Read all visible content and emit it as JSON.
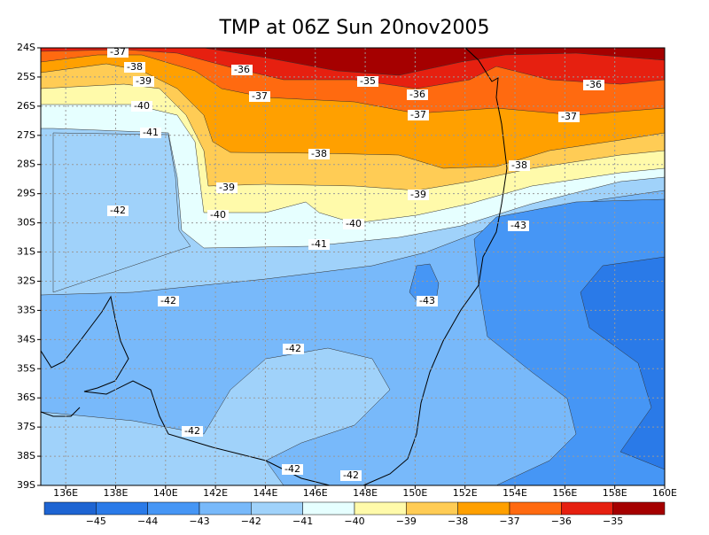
{
  "title": "TMP at 06Z Sun 20nov2005",
  "map": {
    "lonlim": [
      135,
      160
    ],
    "latlim": [
      -24,
      -39
    ],
    "grid": true,
    "lon_ticks": [
      {
        "value": 136,
        "label": "136E"
      },
      {
        "value": 138,
        "label": "138E"
      },
      {
        "value": 140,
        "label": "140E"
      },
      {
        "value": 142,
        "label": "142E"
      },
      {
        "value": 144,
        "label": "144E"
      },
      {
        "value": 146,
        "label": "146E"
      },
      {
        "value": 148,
        "label": "148E"
      },
      {
        "value": 150,
        "label": "150E"
      },
      {
        "value": 152,
        "label": "152E"
      },
      {
        "value": 154,
        "label": "154E"
      },
      {
        "value": 156,
        "label": "156E"
      },
      {
        "value": 158,
        "label": "158E"
      },
      {
        "value": 160,
        "label": "160E"
      }
    ],
    "lat_ticks": [
      {
        "value": -24,
        "label": "24S"
      },
      {
        "value": -25,
        "label": "25S"
      },
      {
        "value": -26,
        "label": "26S"
      },
      {
        "value": -27,
        "label": "27S"
      },
      {
        "value": -28,
        "label": "28S"
      },
      {
        "value": -29,
        "label": "29S"
      },
      {
        "value": -30,
        "label": "30S"
      },
      {
        "value": -31,
        "label": "31S"
      },
      {
        "value": -32,
        "label": "32S"
      },
      {
        "value": -33,
        "label": "33S"
      },
      {
        "value": -34,
        "label": "34S"
      },
      {
        "value": -35,
        "label": "35S"
      },
      {
        "value": -36,
        "label": "36S"
      },
      {
        "value": -37,
        "label": "37S"
      },
      {
        "value": -38,
        "label": "38S"
      },
      {
        "value": -39,
        "label": "39S"
      }
    ],
    "contour_labels": [
      -37,
      -38,
      -39,
      -36,
      -35,
      -36,
      -37,
      -40,
      -41,
      -37,
      -36,
      -37,
      -38,
      -38,
      -39,
      -39,
      -42,
      -40,
      -40,
      -43,
      -41,
      -42,
      -43,
      -42,
      -42,
      -42,
      -42
    ]
  },
  "colorbar": {
    "ticks": [
      {
        "value": -45,
        "label": "−45"
      },
      {
        "value": -44,
        "label": "−44"
      },
      {
        "value": -43,
        "label": "−43"
      },
      {
        "value": -42,
        "label": "−42"
      },
      {
        "value": -41,
        "label": "−41"
      },
      {
        "value": -40,
        "label": "−40"
      },
      {
        "value": -39,
        "label": "−39"
      },
      {
        "value": -38,
        "label": "−38"
      },
      {
        "value": -37,
        "label": "−37"
      },
      {
        "value": -36,
        "label": "−36"
      },
      {
        "value": -35,
        "label": "−35"
      }
    ],
    "colors": [
      "#1e64d2",
      "#2a7ae8",
      "#4696f5",
      "#78b9fa",
      "#a0d2fa",
      "#e6ffff",
      "#fffaaa",
      "#ffcc55",
      "#ffa000",
      "#ff6a10",
      "#e62010",
      "#a50000"
    ]
  }
}
